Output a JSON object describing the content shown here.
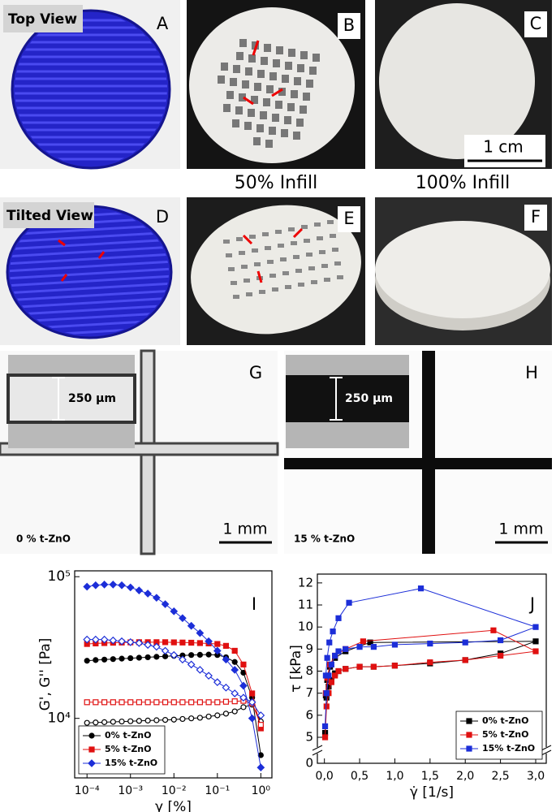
{
  "panel_labels": [
    "A",
    "B",
    "C",
    "D",
    "E",
    "F",
    "G",
    "H",
    "I",
    "J"
  ],
  "photos": {
    "top_view": "Top View",
    "tilted_view": "Tilted View",
    "infill_50": "50% Infill",
    "infill_100": "100% Infill",
    "scale_cm": "1 cm",
    "scale_um_g": "250 µm",
    "scale_um_h": "250 µm",
    "scale_mm_g": "1 mm",
    "scale_mm_h": "1 mm",
    "sample_g": "0 % t-ZnO",
    "sample_h": "15 % t-ZnO"
  },
  "chart_data": [
    {
      "type": "line",
      "log_x": true,
      "log_y": true,
      "xlabel": "γ [%]",
      "ylabel": "G', G'' [Pa]",
      "legend": "lower left",
      "x": [
        0.0001,
        0.000158,
        0.000251,
        0.000398,
        0.000631,
        0.001,
        0.00158,
        0.00251,
        0.00398,
        0.00631,
        0.01,
        0.0158,
        0.0251,
        0.0398,
        0.0631,
        0.1,
        0.158,
        0.251,
        0.398,
        0.631,
        1
      ],
      "xlim": [
        5.2e-05,
        1.8
      ],
      "ylim": [
        3800,
        110000
      ],
      "xticks": [
        {
          "value": 0.0001,
          "label": "10⁻⁴"
        },
        {
          "value": 0.001,
          "label": "10⁻³"
        },
        {
          "value": 0.01,
          "label": "10⁻²"
        },
        {
          "value": 0.1,
          "label": "10⁻¹"
        },
        {
          "value": 1,
          "label": "10⁰"
        }
      ],
      "yticks": [
        {
          "value": 10000,
          "label": "10⁴"
        },
        {
          "value": 100000,
          "label": "10⁵"
        }
      ],
      "series": [
        {
          "name": "0% t-ZnO",
          "color": "#000000",
          "marker": "circle",
          "values": [
            25500,
            25800,
            26000,
            26200,
            26400,
            26600,
            26800,
            27000,
            27200,
            27400,
            27600,
            27800,
            28000,
            28100,
            28200,
            28000,
            27000,
            25000,
            21000,
            14000,
            5500
          ],
          "open_values": [
            9300,
            9350,
            9400,
            9450,
            9500,
            9550,
            9600,
            9650,
            9700,
            9750,
            9800,
            9900,
            10000,
            10100,
            10300,
            10500,
            10800,
            11200,
            12000,
            12500,
            9500
          ]
        },
        {
          "name": "5% t-ZnO",
          "color": "#e01010",
          "marker": "square",
          "values": [
            33500,
            33800,
            34000,
            34200,
            34300,
            34400,
            34500,
            34500,
            34500,
            34500,
            34400,
            34300,
            34200,
            34000,
            33800,
            33500,
            32500,
            30000,
            24000,
            15000,
            8500
          ],
          "open_values": [
            13000,
            13000,
            13000,
            13000,
            13000,
            13000,
            13000,
            13000,
            13000,
            13000,
            13000,
            13000,
            13000,
            13000,
            13000,
            13000,
            13100,
            13200,
            13300,
            12800,
            9000
          ]
        },
        {
          "name": "15% t-ZnO",
          "color": "#1c2ed8",
          "marker": "diamond",
          "values": [
            85000,
            87000,
            88000,
            88000,
            87000,
            84000,
            80000,
            76000,
            71000,
            64000,
            57000,
            51000,
            45000,
            40000,
            35000,
            30000,
            26000,
            22000,
            17000,
            10000,
            4500
          ],
          "open_values": [
            36000,
            36000,
            36000,
            35500,
            35000,
            34500,
            34000,
            33000,
            32000,
            30000,
            28000,
            26000,
            24000,
            22000,
            20000,
            18000,
            16500,
            15000,
            14000,
            13000,
            10500
          ]
        }
      ]
    },
    {
      "type": "line",
      "broken_axis": true,
      "xlabel": "γ̇ [1/s]",
      "ylabel": "τ [kPa]",
      "legend": "lower right",
      "xlim": [
        -0.1,
        3.15
      ],
      "ylim": [
        0,
        12.4
      ],
      "xticks": [
        {
          "value": 0,
          "label": "0,0"
        },
        {
          "value": 0.5,
          "label": "0,5"
        },
        {
          "value": 1,
          "label": "1,0"
        },
        {
          "value": 1.5,
          "label": "1,5"
        },
        {
          "value": 2,
          "label": "2,0"
        },
        {
          "value": 2.5,
          "label": "2,5"
        },
        {
          "value": 3,
          "label": "3,0"
        }
      ],
      "yticks": [
        0,
        5,
        6,
        7,
        8,
        9,
        10,
        11,
        12
      ],
      "series": [
        {
          "name": "0% t-ZnO",
          "color": "#000000",
          "x": [
            0.01,
            0.03,
            0.06,
            0.1,
            0.15,
            0.2,
            0.3,
            0.5,
            0.7,
            1.0,
            1.5,
            2.0,
            2.5,
            3.0,
            0.65,
            0.3,
            0.15,
            0.08,
            0.04,
            0.02
          ],
          "values": [
            5.2,
            6.8,
            7.3,
            7.6,
            7.9,
            8.0,
            8.1,
            8.2,
            8.2,
            8.25,
            8.35,
            8.5,
            8.8,
            9.35,
            9.3,
            8.9,
            8.6,
            8.2,
            7.6,
            6.9
          ]
        },
        {
          "name": "5% t-ZnO",
          "color": "#e01010",
          "x": [
            0.01,
            0.03,
            0.06,
            0.1,
            0.15,
            0.2,
            0.3,
            0.5,
            0.7,
            1.0,
            1.5,
            2.0,
            2.5,
            3.0,
            2.4,
            0.55,
            0.3,
            0.15,
            0.08,
            0.04,
            0.02
          ],
          "values": [
            5.0,
            6.4,
            7.0,
            7.5,
            7.8,
            8.0,
            8.1,
            8.2,
            8.2,
            8.25,
            8.4,
            8.5,
            8.7,
            8.9,
            9.85,
            9.35,
            9.0,
            8.7,
            8.3,
            7.7,
            7.0
          ]
        },
        {
          "name": "15% t-ZnO",
          "color": "#1c2ed8",
          "x": [
            0.01,
            0.03,
            0.06,
            0.1,
            0.15,
            0.2,
            0.3,
            0.5,
            0.7,
            1.0,
            1.5,
            2.0,
            2.5,
            3.0,
            1.37,
            0.35,
            0.2,
            0.12,
            0.07,
            0.04,
            0.02
          ],
          "values": [
            5.5,
            7.0,
            7.8,
            8.3,
            8.7,
            8.9,
            9.0,
            9.1,
            9.1,
            9.2,
            9.25,
            9.3,
            9.4,
            10.0,
            11.75,
            11.1,
            10.4,
            9.8,
            9.3,
            8.6,
            7.8
          ]
        }
      ]
    }
  ]
}
